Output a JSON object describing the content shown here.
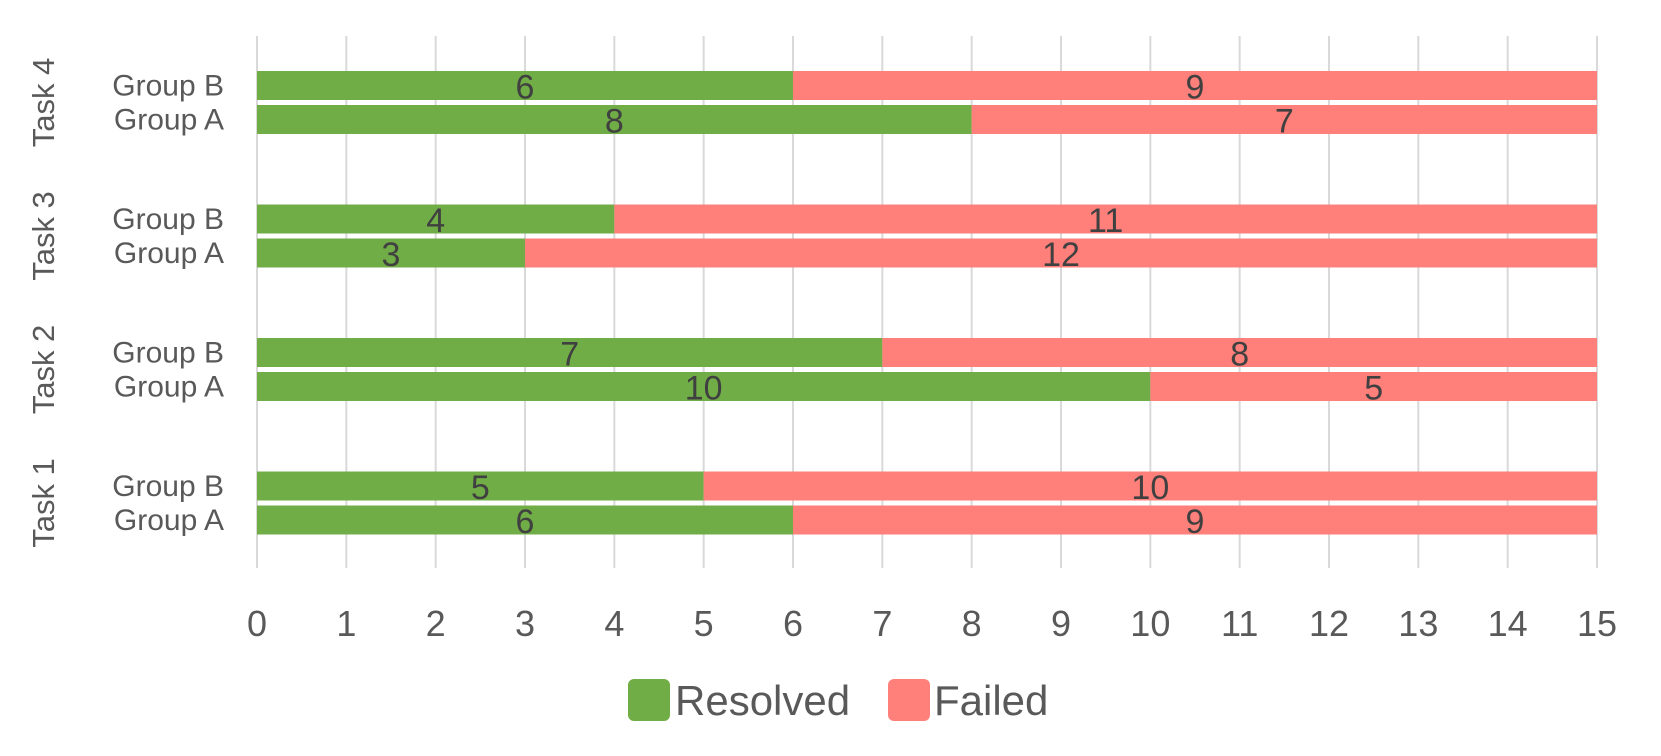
{
  "chart_data": {
    "type": "bar",
    "orientation": "horizontal",
    "stacked": true,
    "title": "",
    "xlabel": "",
    "ylabel": "",
    "xlim": [
      0,
      15
    ],
    "x_ticks": [
      "0",
      "1",
      "2",
      "3",
      "4",
      "5",
      "6",
      "7",
      "8",
      "9",
      "10",
      "11",
      "12",
      "13",
      "14",
      "15"
    ],
    "grid": true,
    "legend_position": "bottom",
    "tasks": [
      {
        "name": "Task 1",
        "groups": [
          {
            "name": "Group A",
            "resolved": 6,
            "failed": 9
          },
          {
            "name": "Group B",
            "resolved": 5,
            "failed": 10
          }
        ]
      },
      {
        "name": "Task 2",
        "groups": [
          {
            "name": "Group A",
            "resolved": 10,
            "failed": 5
          },
          {
            "name": "Group B",
            "resolved": 7,
            "failed": 8
          }
        ]
      },
      {
        "name": "Task 3",
        "groups": [
          {
            "name": "Group A",
            "resolved": 3,
            "failed": 12
          },
          {
            "name": "Group B",
            "resolved": 4,
            "failed": 11
          }
        ]
      },
      {
        "name": "Task 4",
        "groups": [
          {
            "name": "Group A",
            "resolved": 8,
            "failed": 7
          },
          {
            "name": "Group B",
            "resolved": 6,
            "failed": 9
          }
        ]
      }
    ],
    "series": [
      {
        "name": "Resolved",
        "key": "resolved",
        "color": "#70ad47"
      },
      {
        "name": "Failed",
        "key": "failed",
        "color": "#ff7f7a"
      }
    ]
  }
}
